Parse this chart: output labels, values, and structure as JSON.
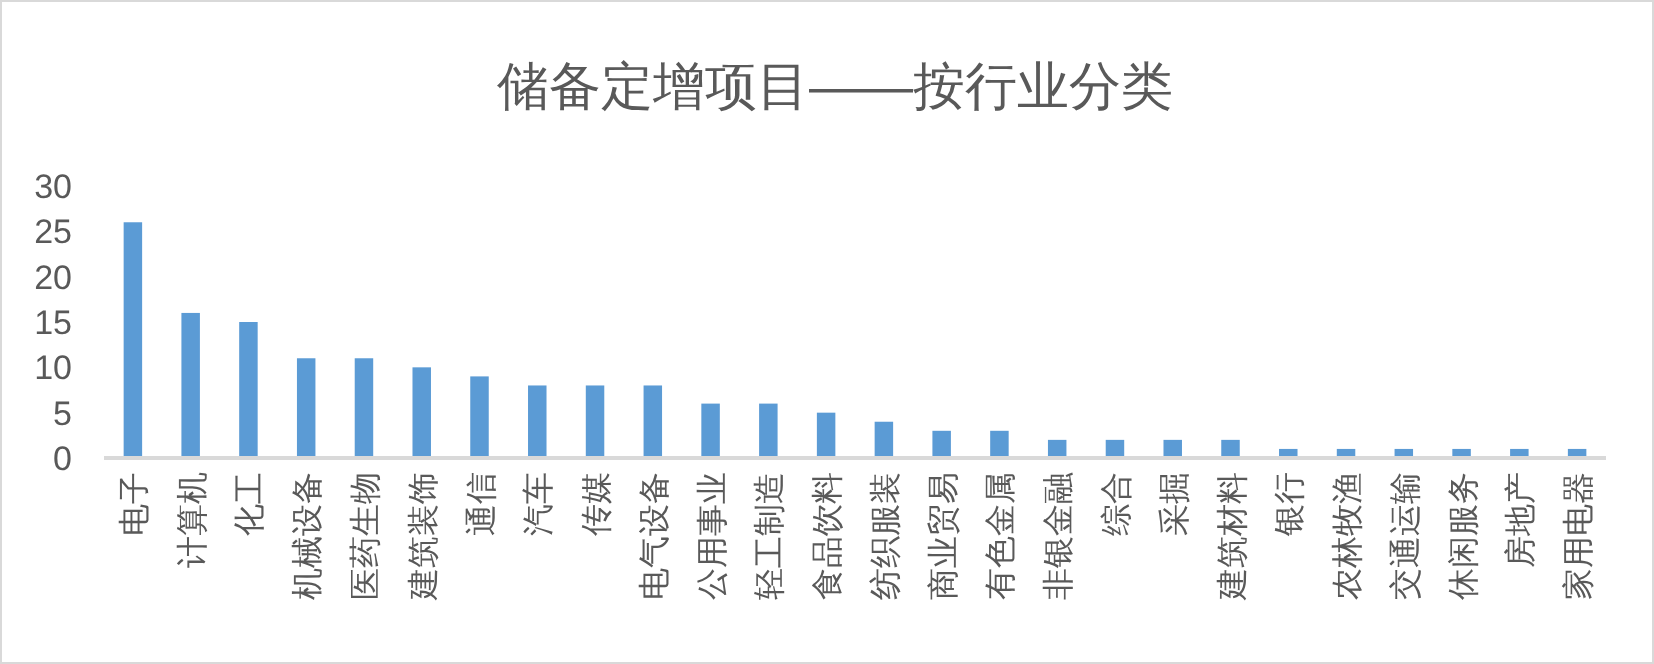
{
  "chart_data": {
    "type": "bar",
    "title": "储备定增项目——按行业分类",
    "categories": [
      "电子",
      "计算机",
      "化工",
      "机械设备",
      "医药生物",
      "建筑装饰",
      "通信",
      "汽车",
      "传媒",
      "电气设备",
      "公用事业",
      "轻工制造",
      "食品饮料",
      "纺织服装",
      "商业贸易",
      "有色金属",
      "非银金融",
      "综合",
      "采掘",
      "建筑材料",
      "银行",
      "农林牧渔",
      "交通运输",
      "休闲服务",
      "房地产",
      "家用电器"
    ],
    "values": [
      26,
      16,
      15,
      11,
      11,
      10,
      9,
      8,
      8,
      8,
      6,
      6,
      5,
      4,
      3,
      3,
      2,
      2,
      2,
      2,
      1,
      1,
      1,
      1,
      1,
      1
    ],
    "color": "#5b9bd5",
    "ylim": [
      0,
      30
    ],
    "yticks": [
      0,
      5,
      10,
      15,
      20,
      25,
      30
    ],
    "grid": false
  }
}
